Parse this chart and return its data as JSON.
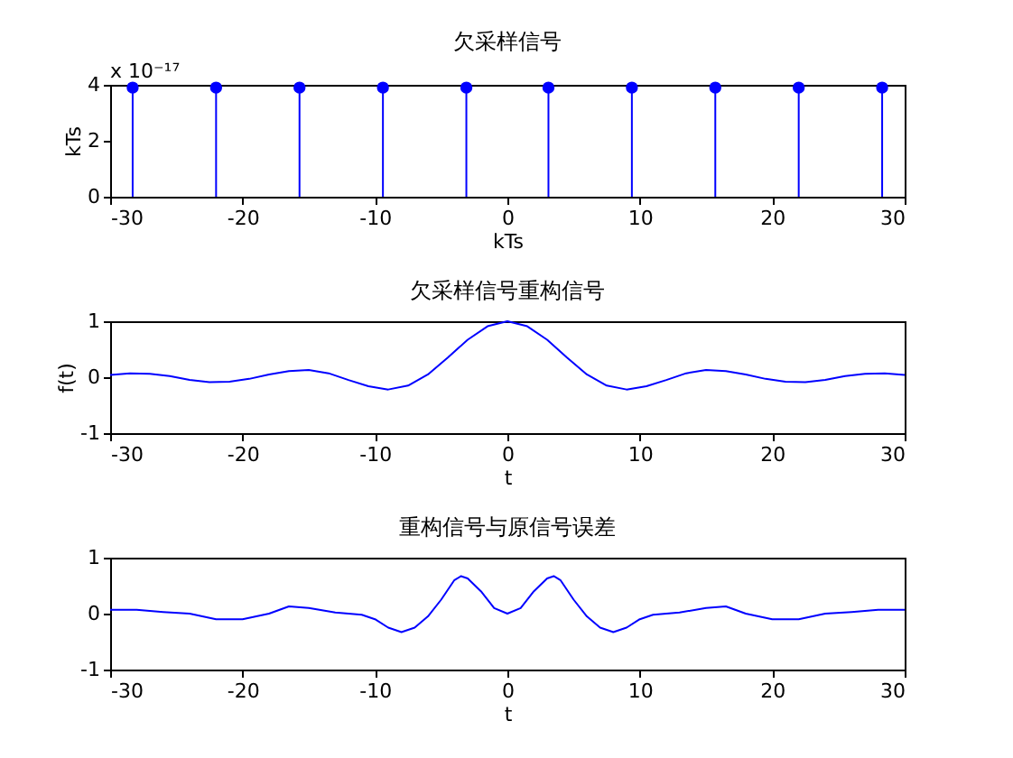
{
  "chart_data": [
    {
      "type": "lollipop",
      "title": "欠采样信号",
      "xlabel": "kTs",
      "ylabel": "kTs",
      "annotations": [
        "x 10⁻¹⁷"
      ],
      "x": [
        -28.3,
        -22,
        -15.7,
        -9.4,
        -3.1,
        3.1,
        9.4,
        15.7,
        22,
        28.3
      ],
      "values": [
        3.9,
        3.9,
        3.9,
        3.9,
        3.9,
        3.9,
        3.9,
        3.9,
        3.9,
        3.9
      ],
      "color": "#0000ff",
      "marker": "circle",
      "xlim": [
        -30,
        30
      ],
      "xticks": [
        -30,
        -20,
        -10,
        0,
        10,
        20,
        30
      ],
      "ylim": [
        0,
        4
      ],
      "yticks": [
        0,
        2,
        4
      ],
      "grid": false
    },
    {
      "type": "line",
      "title": "欠采样信号重构信号",
      "xlabel": "t",
      "ylabel": "f(t)",
      "x": [
        -30,
        -28.5,
        -27,
        -25.5,
        -24,
        -22.5,
        -21,
        -19.5,
        -18,
        -16.5,
        -15,
        -13.5,
        -12,
        -10.5,
        -9,
        -7.5,
        -6,
        -4.5,
        -3,
        -1.5,
        0,
        1.5,
        3,
        4.5,
        6,
        7.5,
        9,
        10.5,
        12,
        13.5,
        15,
        16.5,
        18,
        19.5,
        21,
        22.5,
        24,
        25.5,
        27,
        28.5,
        30
      ],
      "values": [
        0.04,
        0.07,
        0.06,
        0.02,
        -0.05,
        -0.09,
        -0.08,
        -0.03,
        0.05,
        0.11,
        0.13,
        0.07,
        -0.05,
        -0.16,
        -0.22,
        -0.15,
        0.05,
        0.35,
        0.67,
        0.91,
        1,
        0.91,
        0.67,
        0.35,
        0.05,
        -0.15,
        -0.22,
        -0.16,
        -0.05,
        0.07,
        0.13,
        0.11,
        0.05,
        -0.03,
        -0.08,
        -0.09,
        -0.05,
        0.02,
        0.06,
        0.07,
        0.04
      ],
      "color": "#0000ff",
      "xlim": [
        -30,
        30
      ],
      "xticks": [
        -30,
        -20,
        -10,
        0,
        10,
        20,
        30
      ],
      "ylim": [
        -1,
        1
      ],
      "yticks": [
        -1,
        0,
        1
      ],
      "grid": false
    },
    {
      "type": "line",
      "title": "重构信号与原信号误差",
      "xlabel": "t",
      "x": [
        -30,
        -28,
        -26,
        -24,
        -22,
        -20,
        -18,
        -16.5,
        -15,
        -13,
        -11,
        -10,
        -9,
        -8,
        -7,
        -6,
        -5,
        -4,
        -3.5,
        -3,
        -2,
        -1,
        0,
        1,
        2,
        3,
        3.5,
        4,
        5,
        6,
        7,
        8,
        9,
        10,
        11,
        13,
        15,
        16.5,
        18,
        20,
        22,
        24,
        26,
        28,
        30
      ],
      "values": [
        0.07,
        0.07,
        0.03,
        0,
        -0.1,
        -0.1,
        0,
        0.13,
        0.1,
        0.02,
        -0.02,
        -0.1,
        -0.25,
        -0.33,
        -0.25,
        -0.05,
        0.25,
        0.6,
        0.67,
        0.63,
        0.4,
        0.1,
        0,
        0.1,
        0.4,
        0.63,
        0.67,
        0.6,
        0.25,
        -0.05,
        -0.25,
        -0.33,
        -0.25,
        -0.1,
        -0.02,
        0.02,
        0.1,
        0.13,
        0,
        -0.1,
        -0.1,
        0,
        0.03,
        0.07,
        0.07
      ],
      "color": "#0000ff",
      "xlim": [
        -30,
        30
      ],
      "xticks": [
        -30,
        -20,
        -10,
        0,
        10,
        20,
        30
      ],
      "ylim": [
        -1,
        1
      ],
      "yticks": [
        -1,
        0,
        1
      ],
      "grid": false
    }
  ]
}
